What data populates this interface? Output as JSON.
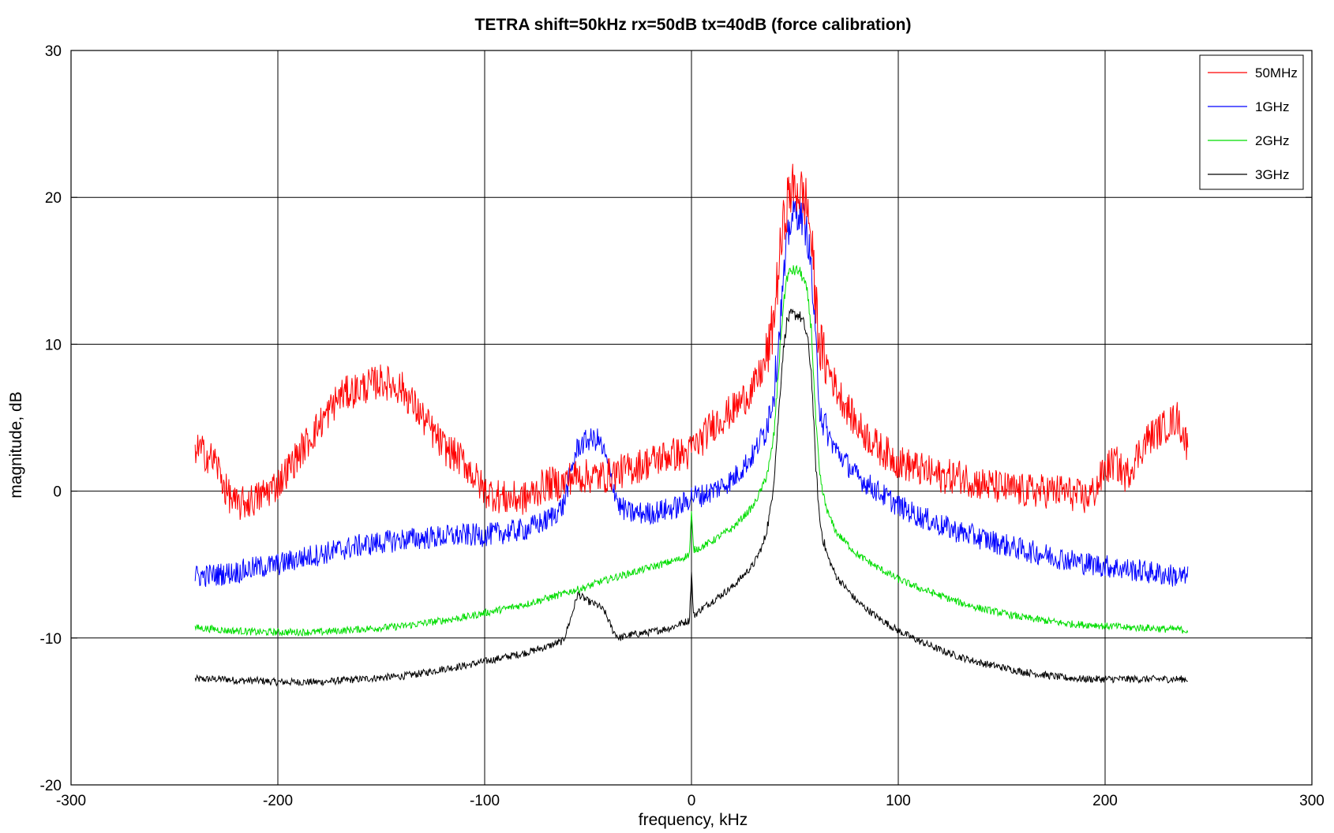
{
  "chart_data": {
    "type": "line",
    "title": "TETRA shift=50kHz rx=50dB tx=40dB (force calibration)",
    "xlabel": "frequency, kHz",
    "ylabel": "magnitude, dB",
    "xlim": [
      -300,
      300
    ],
    "ylim": [
      -20,
      30
    ],
    "xticks": [
      -300,
      -200,
      -100,
      0,
      100,
      200,
      300
    ],
    "yticks": [
      -20,
      -10,
      0,
      10,
      20,
      30
    ],
    "xtick_labels": [
      "-300",
      "-200",
      "-100",
      "0",
      "100",
      "200",
      "300"
    ],
    "ytick_labels": [
      "-20",
      "-10",
      "0",
      "10",
      "20",
      "30"
    ],
    "grid": true,
    "legend_position": "top-right",
    "x": [
      -240,
      -230,
      -225,
      -220,
      -210,
      -200,
      -190,
      -180,
      -170,
      -160,
      -150,
      -140,
      -130,
      -120,
      -110,
      -100,
      -90,
      -80,
      -70,
      -62,
      -58,
      -55,
      -50,
      -45,
      -42,
      -38,
      -35,
      -30,
      -20,
      -10,
      -5,
      -1,
      0,
      1,
      5,
      10,
      20,
      30,
      35,
      38,
      40,
      42,
      44,
      46,
      48,
      50,
      52,
      54,
      56,
      58,
      60,
      62,
      64,
      66,
      70,
      80,
      90,
      100,
      110,
      120,
      130,
      140,
      150,
      160,
      170,
      180,
      190,
      195,
      200,
      205,
      210,
      220,
      230,
      235,
      240
    ],
    "series": [
      {
        "name": "50MHz",
        "color": "#ff0000",
        "noise": 1.2,
        "values": [
          3.0,
          2.0,
          0.0,
          -1.0,
          -0.5,
          0.5,
          2.5,
          4.5,
          6.5,
          7.0,
          7.5,
          7.0,
          5.0,
          3.0,
          2.0,
          0.0,
          -0.5,
          -0.5,
          0.5,
          0.5,
          1.0,
          1.0,
          1.0,
          1.0,
          1.0,
          1.2,
          1.3,
          1.5,
          2.0,
          2.5,
          2.5,
          2.5,
          3.0,
          3.0,
          3.5,
          4.5,
          5.5,
          7.0,
          8.5,
          10.0,
          12.0,
          15.0,
          17.5,
          19.5,
          20.5,
          20.5,
          20.5,
          20.0,
          19.5,
          17.0,
          13.0,
          10.0,
          9.0,
          8.5,
          7.0,
          4.5,
          3.0,
          2.0,
          1.5,
          1.0,
          1.0,
          0.5,
          0.2,
          0.0,
          0.0,
          0.0,
          -0.5,
          0.0,
          1.5,
          2.0,
          1.0,
          3.5,
          4.5,
          5.0,
          3.0
        ]
      },
      {
        "name": "1GHz",
        "color": "#0000ff",
        "noise": 0.8,
        "values": [
          -5.8,
          -5.7,
          -5.6,
          -5.5,
          -5.2,
          -5.0,
          -4.6,
          -4.3,
          -4.0,
          -3.7,
          -3.5,
          -3.3,
          -3.2,
          -3.1,
          -3.0,
          -3.0,
          -2.8,
          -2.6,
          -2.0,
          -1.0,
          1.5,
          3.0,
          3.5,
          3.5,
          2.5,
          0.5,
          -1.0,
          -1.5,
          -1.5,
          -1.2,
          -1.0,
          -0.5,
          -0.3,
          -0.3,
          -0.3,
          0.0,
          0.8,
          2.5,
          4.0,
          5.5,
          7.0,
          10.0,
          13.5,
          16.5,
          18.5,
          19.0,
          19.0,
          18.5,
          17.5,
          15.0,
          10.0,
          6.0,
          4.5,
          3.8,
          2.8,
          1.0,
          0.0,
          -1.0,
          -1.7,
          -2.3,
          -2.8,
          -3.2,
          -3.6,
          -4.0,
          -4.3,
          -4.6,
          -4.9,
          -5.0,
          -5.1,
          -5.2,
          -5.3,
          -5.5,
          -5.7,
          -5.8,
          -5.9
        ]
      },
      {
        "name": "2GHz",
        "color": "#00dd00",
        "noise": 0.25,
        "values": [
          -9.3,
          -9.4,
          -9.5,
          -9.5,
          -9.6,
          -9.6,
          -9.6,
          -9.6,
          -9.5,
          -9.4,
          -9.3,
          -9.2,
          -9.0,
          -8.8,
          -8.6,
          -8.3,
          -8.0,
          -7.7,
          -7.3,
          -7.0,
          -6.8,
          -6.7,
          -6.5,
          -6.2,
          -6.1,
          -5.9,
          -5.8,
          -5.6,
          -5.2,
          -4.8,
          -4.6,
          -4.3,
          -1.5,
          -4.0,
          -3.8,
          -3.4,
          -2.5,
          -1.0,
          0.5,
          2.0,
          4.0,
          8.0,
          12.0,
          14.5,
          15.0,
          15.0,
          15.0,
          14.5,
          13.5,
          11.0,
          5.0,
          1.0,
          -0.5,
          -1.5,
          -2.8,
          -4.3,
          -5.2,
          -6.0,
          -6.6,
          -7.1,
          -7.6,
          -8.0,
          -8.3,
          -8.6,
          -8.8,
          -9.0,
          -9.1,
          -9.1,
          -9.2,
          -9.2,
          -9.3,
          -9.3,
          -9.4,
          -9.4,
          -9.5
        ]
      },
      {
        "name": "3GHz",
        "color": "#000000",
        "noise": 0.25,
        "values": [
          -12.8,
          -12.8,
          -12.8,
          -12.9,
          -12.9,
          -13.0,
          -13.0,
          -13.0,
          -12.9,
          -12.8,
          -12.7,
          -12.6,
          -12.4,
          -12.1,
          -11.9,
          -11.6,
          -11.3,
          -11.0,
          -10.6,
          -10.2,
          -8.5,
          -7.0,
          -7.5,
          -7.8,
          -8.2,
          -9.5,
          -10.0,
          -9.8,
          -9.6,
          -9.3,
          -9.0,
          -8.8,
          -5.5,
          -8.5,
          -8.0,
          -7.5,
          -6.5,
          -5.0,
          -3.5,
          -1.5,
          1.0,
          5.0,
          9.0,
          11.5,
          12.0,
          12.0,
          12.0,
          11.5,
          10.5,
          8.0,
          2.0,
          -2.0,
          -3.5,
          -4.5,
          -5.8,
          -7.5,
          -8.6,
          -9.5,
          -10.2,
          -10.8,
          -11.3,
          -11.7,
          -12.0,
          -12.3,
          -12.5,
          -12.7,
          -12.8,
          -12.8,
          -12.8,
          -12.8,
          -12.8,
          -12.8,
          -12.8,
          -12.8,
          -12.8
        ]
      }
    ]
  }
}
